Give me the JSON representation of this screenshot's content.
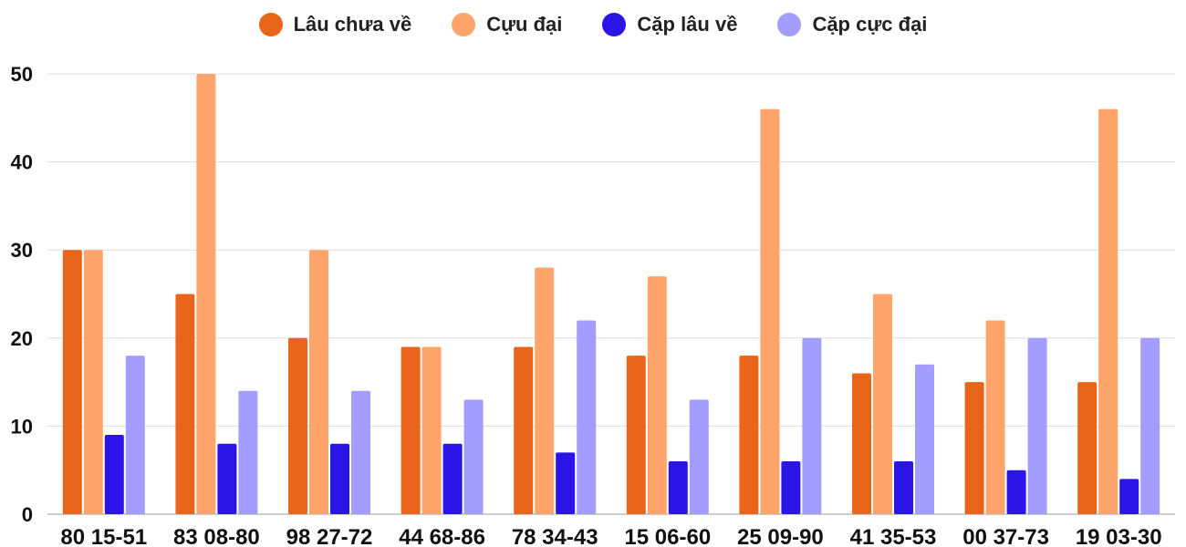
{
  "chart_data": {
    "type": "bar",
    "categories": [
      "80 15-51",
      "83 08-80",
      "98 27-72",
      "44 68-86",
      "78 34-43",
      "15 06-60",
      "25 09-90",
      "41 35-53",
      "00 37-73",
      "19 03-30"
    ],
    "series": [
      {
        "name": "Lâu chưa về",
        "color": "#e8651a",
        "values": [
          30,
          25,
          20,
          19,
          19,
          18,
          18,
          16,
          15,
          15
        ]
      },
      {
        "name": "Cựu đại",
        "color": "#ffa56b",
        "values": [
          30,
          50,
          30,
          19,
          28,
          27,
          46,
          25,
          22,
          46
        ]
      },
      {
        "name": "Cặp lâu về",
        "color": "#2a14e6",
        "values": [
          9,
          8,
          8,
          8,
          7,
          6,
          6,
          6,
          5,
          4
        ]
      },
      {
        "name": "Cặp cực đại",
        "color": "#a39dff",
        "values": [
          18,
          14,
          14,
          13,
          22,
          13,
          20,
          17,
          20,
          20
        ]
      }
    ],
    "yticks": [
      0,
      10,
      20,
      30,
      40,
      50
    ],
    "ylim": [
      0,
      50
    ],
    "grid": true,
    "legend_position": "top-center"
  }
}
